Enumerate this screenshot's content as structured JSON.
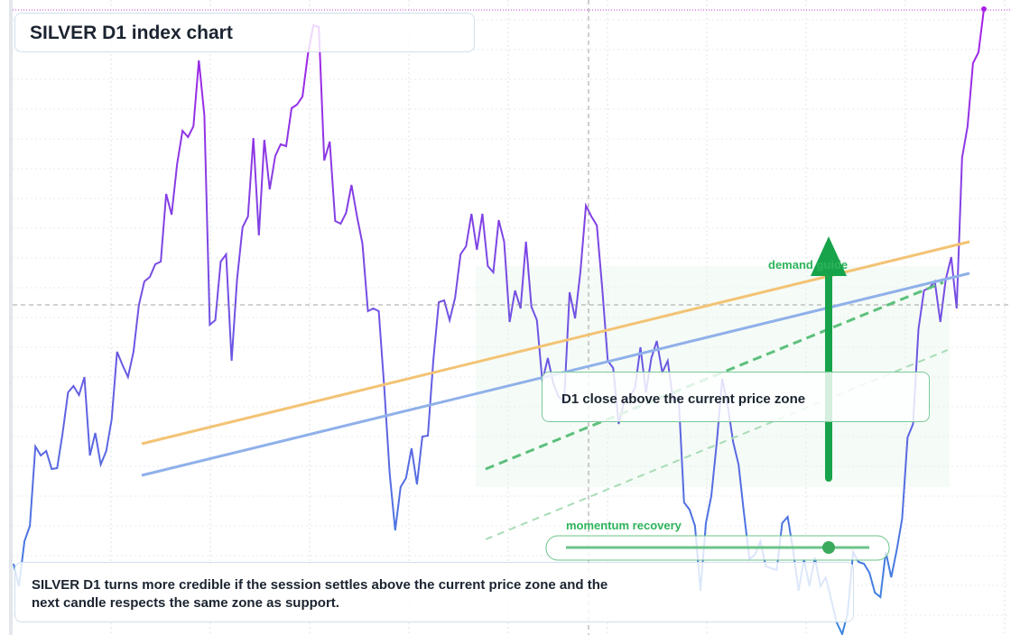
{
  "chart_data": {
    "type": "line",
    "title": "SILVER D1 index chart",
    "values": [
      79,
      54,
      104,
      121,
      209,
      199,
      204,
      184,
      185,
      224,
      269,
      276,
      266,
      286,
      199,
      224,
      189,
      204,
      239,
      314,
      299,
      286,
      314,
      366,
      392,
      397,
      411,
      414,
      489,
      466,
      522,
      559,
      552,
      564,
      637,
      576,
      344,
      349,
      414,
      422,
      304,
      394,
      452,
      464,
      551,
      443,
      549,
      494,
      531,
      544,
      542,
      584,
      588,
      597,
      644,
      676,
      674,
      526,
      547,
      459,
      456,
      468,
      499,
      464,
      434,
      359,
      362,
      359,
      274,
      179,
      116,
      164,
      174,
      207,
      167,
      220,
      221,
      304,
      369,
      371,
      349,
      374,
      422,
      431,
      467,
      427,
      467,
      409,
      402,
      460,
      436,
      347,
      382,
      362,
      436,
      364,
      349,
      281,
      307,
      279,
      264,
      259,
      380,
      351,
      404,
      476,
      464,
      454,
      384,
      304,
      296,
      234,
      259,
      264,
      274,
      319,
      269,
      307,
      326,
      291,
      304,
      259,
      264,
      147,
      139,
      121,
      49,
      124,
      154,
      214,
      284,
      254,
      214,
      189,
      134,
      84,
      89,
      104,
      76,
      74,
      72,
      124,
      131,
      94,
      49,
      84,
      54,
      86,
      54,
      64,
      39,
      14,
      1,
      24,
      92,
      81,
      79,
      69,
      47,
      42,
      92,
      64,
      94,
      129,
      219,
      234,
      339,
      382,
      385,
      392,
      347,
      394,
      419,
      362,
      529,
      564,
      634,
      646,
      694
    ],
    "ylim": [
      0,
      700
    ],
    "gradient": [
      "#3a86e0",
      "#a71fe6"
    ],
    "grid": true,
    "annotations": [
      "demand guide",
      "D1 close above the current price zone",
      "momentum recovery",
      "SILVER D1 turns more credible if the session settles above the current price zone and the next candle respects the same zone as support."
    ]
  }
}
